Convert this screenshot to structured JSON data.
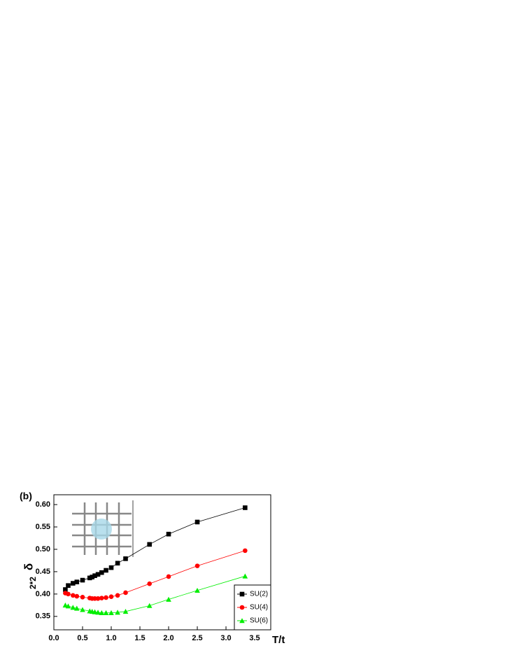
{
  "chart_data": {
    "type": "line",
    "panel_label": "(b)",
    "xlabel": "T/t",
    "ylabel": "δ",
    "ylabel_sub": "2*2",
    "x": [
      0.2,
      0.25,
      0.333,
      0.4,
      0.5,
      0.625,
      0.667,
      0.714,
      0.769,
      0.833,
      0.909,
      1.0,
      1.111,
      1.25,
      1.667,
      2.0,
      2.5,
      3.333
    ],
    "series": [
      {
        "name": "SU(2)",
        "color": "#000000",
        "marker": "square",
        "values": [
          0.41,
          0.419,
          0.424,
          0.427,
          0.431,
          0.436,
          0.438,
          0.441,
          0.444,
          0.448,
          0.453,
          0.459,
          0.469,
          0.479,
          0.511,
          0.534,
          0.561,
          0.593
        ]
      },
      {
        "name": "SU(4)",
        "color": "#ff0000",
        "marker": "circle",
        "values": [
          0.402,
          0.4,
          0.397,
          0.395,
          0.393,
          0.391,
          0.39,
          0.39,
          0.39,
          0.391,
          0.392,
          0.394,
          0.397,
          0.403,
          0.423,
          0.439,
          0.463,
          0.497
        ]
      },
      {
        "name": "SU(6)",
        "color": "#00ee00",
        "marker": "triangle",
        "values": [
          0.375,
          0.373,
          0.37,
          0.368,
          0.365,
          0.362,
          0.361,
          0.36,
          0.359,
          0.358,
          0.358,
          0.358,
          0.359,
          0.361,
          0.374,
          0.388,
          0.408,
          0.44
        ]
      }
    ],
    "xlim": [
      0,
      3.78
    ],
    "xticks": [
      {
        "value": 0,
        "label": "0.0"
      },
      0.5,
      {
        "value": 1,
        "label": "1.0"
      },
      1.5,
      {
        "value": 2,
        "label": "2.0"
      },
      2.5,
      {
        "value": 3,
        "label": "3.0"
      },
      3.5
    ],
    "ylim": [
      0.32,
      0.622
    ],
    "yticks": [
      {
        "value": 0.35,
        "label": "0.35"
      },
      {
        "value": 0.4,
        "label": "0.40"
      },
      {
        "value": 0.45,
        "label": "0.45"
      },
      {
        "value": 0.5,
        "label": "0.50"
      },
      {
        "value": 0.55,
        "label": "0.55"
      },
      {
        "value": 0.6,
        "label": "0.60"
      }
    ],
    "legend": "lower right"
  }
}
